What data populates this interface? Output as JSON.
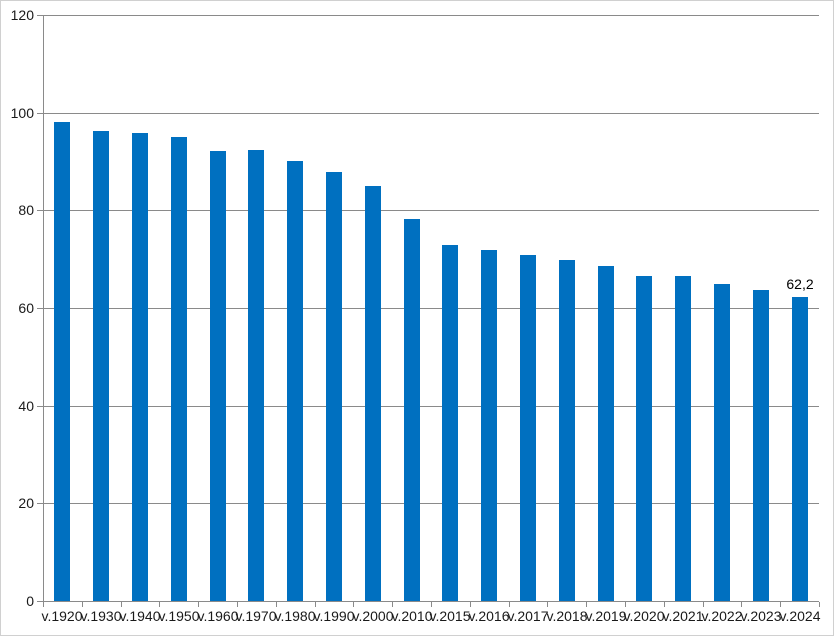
{
  "chart_data": {
    "type": "bar",
    "title": "",
    "xlabel": "",
    "ylabel": "",
    "categories": [
      "v.1920",
      "v.1930",
      "v.1940",
      "v.1950",
      "v.1960",
      "v.1970",
      "v.1980",
      "v.1990",
      "v.2000",
      "v.2010",
      "v.2015",
      "v.2016",
      "v.2017",
      "v.2018",
      "v.2019",
      "v.2020",
      "v.2021",
      "v.2022",
      "v.2023",
      "v.2024"
    ],
    "values": [
      98,
      96.2,
      95.8,
      95,
      92.2,
      92.4,
      90.2,
      87.9,
      84.9,
      78.3,
      73,
      71.9,
      70.8,
      69.8,
      68.6,
      66.5,
      66.5,
      65,
      63.6,
      62.2
    ],
    "ylim": [
      0,
      120
    ],
    "yticks": [
      0,
      20,
      40,
      60,
      80,
      100,
      120
    ],
    "ytick_labels": [
      "0",
      "20",
      "40",
      "60",
      "80",
      "100",
      "120"
    ],
    "grid": true,
    "legend": "none",
    "data_labels": [
      {
        "index": 19,
        "text": "62,2"
      }
    ],
    "colors": {
      "bar": "#0070C0",
      "gridline": "#8a8a8a",
      "axis": "#8a8a8a",
      "label_text": "#1a1a1a",
      "chart_border": "#d0d0d0",
      "background": "#ffffff"
    }
  }
}
